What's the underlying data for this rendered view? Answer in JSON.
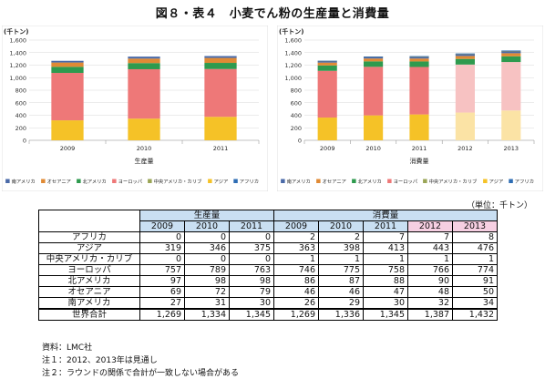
{
  "title": "図８・表４　小麦でん粉の生産量と消費量",
  "colors": {
    "Africa": "#2e6db4",
    "Asia": "#f5c227",
    "CentralAmericaCaribbean": "#9aa556",
    "Europe": "#ee7878",
    "NorthAmerica": "#2e9a4e",
    "Oceania": "#e08a35",
    "SouthAmerica": "#4a6aa8",
    "Europe_forecast": "#f7c2c2",
    "Asia_forecast": "#fbe3a5"
  },
  "chart_data": [
    {
      "type": "bar",
      "stacked": true,
      "unit_label": "(千トン)",
      "xlabel": "生産量",
      "categories": [
        "2009",
        "2010",
        "2011"
      ],
      "ylim": [
        0,
        1600
      ],
      "yticks": [
        "0",
        "200",
        "400",
        "600",
        "800",
        "1,000",
        "1,200",
        "1,400",
        "1,600"
      ],
      "grid": true,
      "legend_position": "bottom",
      "series": [
        {
          "name": "アジア",
          "key": "Asia",
          "values": [
            319,
            346,
            375
          ]
        },
        {
          "name": "ヨーロッパ",
          "key": "Europe",
          "values": [
            757,
            789,
            763
          ]
        },
        {
          "name": "北アメリカ",
          "key": "NorthAmerica",
          "values": [
            97,
            98,
            98
          ]
        },
        {
          "name": "オセアニア",
          "key": "Oceania",
          "values": [
            69,
            72,
            79
          ]
        },
        {
          "name": "南アメリカ",
          "key": "SouthAmerica",
          "values": [
            27,
            31,
            30
          ]
        },
        {
          "name": "中央アメリカ・カリブ",
          "key": "CentralAmericaCaribbean",
          "values": [
            0,
            0,
            0
          ]
        },
        {
          "name": "アフリカ",
          "key": "Africa",
          "values": [
            0,
            0,
            0
          ]
        }
      ],
      "legend": [
        "南アメリカ",
        "オセアニア",
        "北アメリカ",
        "ヨーロッパ",
        "中央アメリカ・カリブ",
        "アジア",
        "アフリカ"
      ]
    },
    {
      "type": "bar",
      "stacked": true,
      "unit_label": "(千トン)",
      "xlabel": "消費量",
      "categories": [
        "2009",
        "2010",
        "2011",
        "2012",
        "2013"
      ],
      "forecast_categories": [
        "2012",
        "2013"
      ],
      "ylim": [
        0,
        1600
      ],
      "yticks": [
        "0",
        "200",
        "400",
        "600",
        "800",
        "1,000",
        "1,200",
        "1,400",
        "1,600"
      ],
      "grid": true,
      "legend_position": "bottom",
      "series": [
        {
          "name": "アジア",
          "key": "Asia",
          "values": [
            363,
            398,
            413,
            443,
            476
          ]
        },
        {
          "name": "ヨーロッパ",
          "key": "Europe",
          "values": [
            746,
            775,
            758,
            766,
            774
          ]
        },
        {
          "name": "北アメリカ",
          "key": "NorthAmerica",
          "values": [
            86,
            87,
            88,
            90,
            91
          ]
        },
        {
          "name": "オセアニア",
          "key": "Oceania",
          "values": [
            46,
            46,
            47,
            48,
            50
          ]
        },
        {
          "name": "南アメリカ",
          "key": "SouthAmerica",
          "values": [
            26,
            29,
            30,
            32,
            34
          ]
        },
        {
          "name": "中央アメリカ・カリブ",
          "key": "CentralAmericaCaribbean",
          "values": [
            1,
            1,
            1,
            1,
            1
          ]
        },
        {
          "name": "アフリカ",
          "key": "Africa",
          "values": [
            2,
            2,
            7,
            7,
            8
          ]
        }
      ],
      "legend": [
        "南アメリカ",
        "オセアニア",
        "北アメリカ",
        "ヨーロッパ",
        "中央アメリカ・カリブ",
        "アジア",
        "アフリカ"
      ]
    },
    {
      "type": "table",
      "unit_text": "（単位：千トン）",
      "group_headers": {
        "production": "生産量",
        "consumption": "消費量"
      },
      "years": [
        "2009",
        "2010",
        "2011",
        "2009",
        "2010",
        "2011",
        "2012",
        "2013"
      ],
      "rows": [
        {
          "label": "アフリカ",
          "values": [
            "0",
            "0",
            "0",
            "2",
            "2",
            "7",
            "7",
            "8"
          ]
        },
        {
          "label": "アジア",
          "values": [
            "319",
            "346",
            "375",
            "363",
            "398",
            "413",
            "443",
            "476"
          ]
        },
        {
          "label": "中央アメリカ・カリブ",
          "values": [
            "0",
            "0",
            "0",
            "1",
            "1",
            "1",
            "1",
            "1"
          ]
        },
        {
          "label": "ヨーロッパ",
          "values": [
            "757",
            "789",
            "763",
            "746",
            "775",
            "758",
            "766",
            "774"
          ]
        },
        {
          "label": "北アメリカ",
          "values": [
            "97",
            "98",
            "98",
            "86",
            "87",
            "88",
            "90",
            "91"
          ]
        },
        {
          "label": "オセアニア",
          "values": [
            "69",
            "72",
            "79",
            "46",
            "46",
            "47",
            "48",
            "50"
          ]
        },
        {
          "label": "南アメリカ",
          "values": [
            "27",
            "31",
            "30",
            "26",
            "29",
            "30",
            "32",
            "34"
          ]
        }
      ],
      "total": {
        "label": "世界合計",
        "values": [
          "1,269",
          "1,334",
          "1,345",
          "1,269",
          "1,336",
          "1,345",
          "1,387",
          "1,432"
        ]
      }
    }
  ],
  "notes": [
    "資料：LMC社",
    "注１：2012、2013年は見通し",
    "注２：ラウンドの関係で合計が一致しない場合がある"
  ]
}
